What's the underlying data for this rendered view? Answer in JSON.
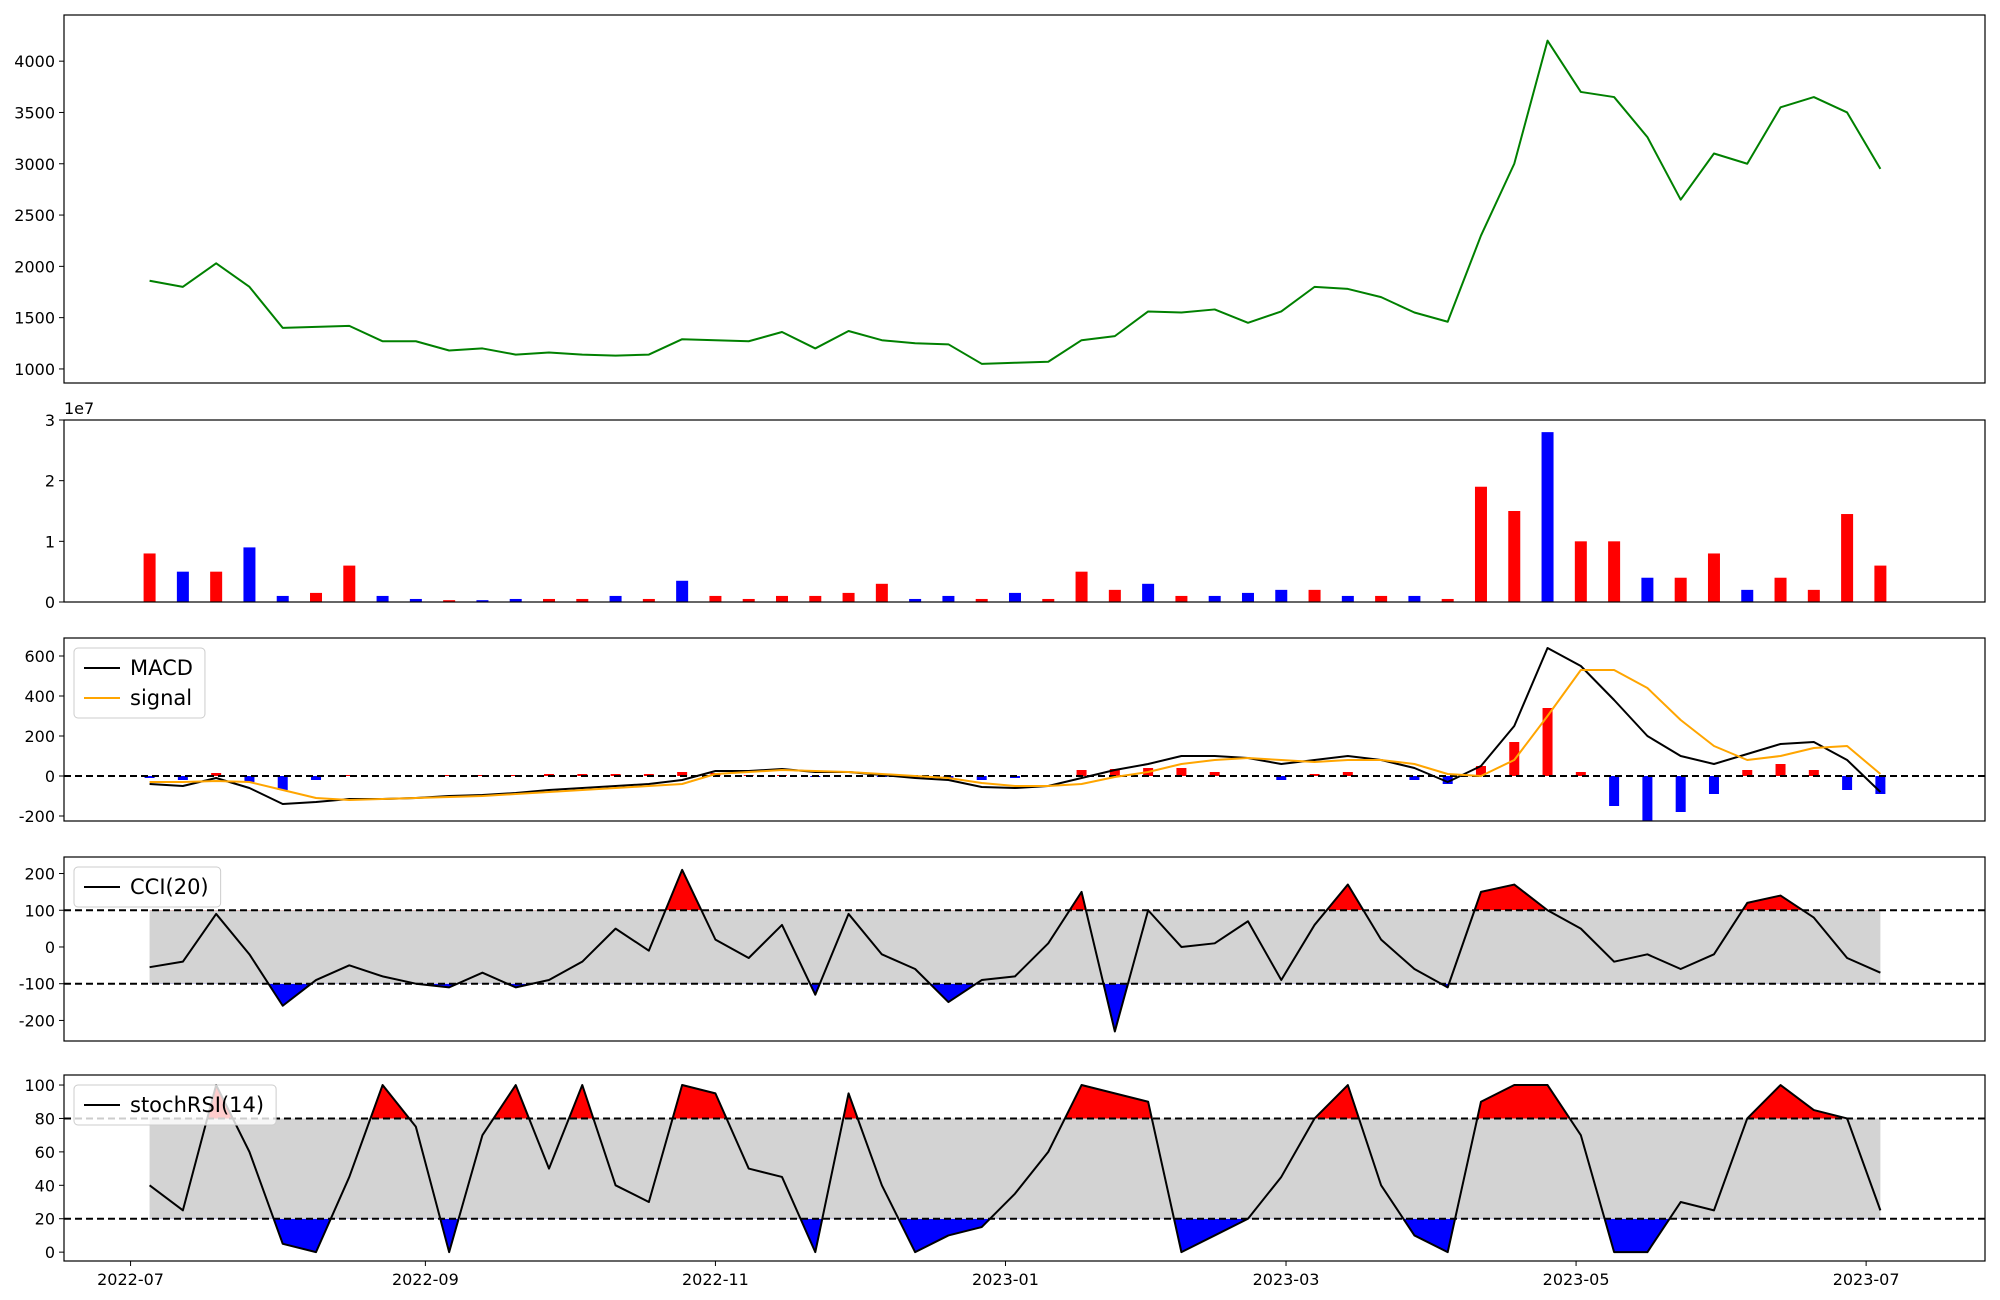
{
  "x": [
    "2022-07-05",
    "2022-07-12",
    "2022-07-19",
    "2022-07-26",
    "2022-08-02",
    "2022-08-09",
    "2022-08-16",
    "2022-08-23",
    "2022-08-30",
    "2022-09-06",
    "2022-09-13",
    "2022-09-20",
    "2022-09-27",
    "2022-10-04",
    "2022-10-11",
    "2022-10-18",
    "2022-10-25",
    "2022-11-01",
    "2022-11-08",
    "2022-11-15",
    "2022-11-22",
    "2022-11-29",
    "2022-12-06",
    "2022-12-13",
    "2022-12-20",
    "2022-12-27",
    "2023-01-03",
    "2023-01-10",
    "2023-01-17",
    "2023-01-24",
    "2023-01-31",
    "2023-02-07",
    "2023-02-14",
    "2023-02-21",
    "2023-02-28",
    "2023-03-07",
    "2023-03-14",
    "2023-03-21",
    "2023-03-28",
    "2023-04-04",
    "2023-04-11",
    "2023-04-18",
    "2023-04-25",
    "2023-05-02",
    "2023-05-09",
    "2023-05-16",
    "2023-05-23",
    "2023-05-30",
    "2023-06-06",
    "2023-06-13",
    "2023-06-20",
    "2023-06-27",
    "2023-07-04"
  ],
  "xlim": [
    "2022-06-17",
    "2023-07-26"
  ],
  "xticks": [
    "2022-07",
    "2022-09",
    "2022-11",
    "2023-01",
    "2023-03",
    "2023-05",
    "2023-07"
  ],
  "chart_data": [
    {
      "type": "line",
      "ylim": [
        863,
        4450
      ],
      "yticks": [
        1000,
        1500,
        2000,
        2500,
        3000,
        3500,
        4000
      ],
      "series": [
        {
          "color": "green",
          "values": [
            1860,
            1800,
            2030,
            1800,
            1400,
            1410,
            1420,
            1270,
            1270,
            1180,
            1200,
            1140,
            1160,
            1140,
            1130,
            1140,
            1290,
            1280,
            1270,
            1360,
            1200,
            1370,
            1280,
            1250,
            1240,
            1050,
            1060,
            1070,
            1280,
            1320,
            1560,
            1550,
            1580,
            1450,
            1560,
            1800,
            1780,
            1700,
            1550,
            1460,
            2300,
            3000,
            4200,
            3700,
            3650,
            3260,
            2650,
            3100,
            3000,
            3550,
            3650,
            3500,
            2950
          ]
        }
      ]
    },
    {
      "type": "bar",
      "ylim": [
        0,
        3
      ],
      "yticks": [
        0,
        1,
        2,
        3
      ],
      "offset_text": "1e7",
      "series": [
        {
          "values": [
            0.8,
            0.5,
            0.5,
            0.9,
            0.1,
            0.15,
            0.6,
            0.1,
            0.05,
            0.03,
            0.03,
            0.05,
            0.05,
            0.05,
            0.1,
            0.05,
            0.35,
            0.1,
            0.05,
            0.1,
            0.1,
            0.15,
            0.3,
            0.05,
            0.1,
            0.05,
            0.15,
            0.05,
            0.5,
            0.2,
            0.3,
            0.1,
            0.1,
            0.15,
            0.2,
            0.2,
            0.1,
            0.1,
            0.1,
            0.05,
            1.9,
            1.5,
            2.8,
            1.0,
            1.0,
            0.4,
            0.4,
            0.8,
            0.2,
            0.4,
            0.2,
            1.45,
            0.6
          ],
          "colors": [
            "red",
            "blue",
            "red",
            "blue",
            "blue",
            "red",
            "red",
            "blue",
            "blue",
            "red",
            "blue",
            "blue",
            "red",
            "red",
            "blue",
            "red",
            "blue",
            "red",
            "red",
            "red",
            "red",
            "red",
            "red",
            "blue",
            "blue",
            "red",
            "blue",
            "red",
            "red",
            "red",
            "blue",
            "red",
            "blue",
            "blue",
            "blue",
            "red",
            "blue",
            "red",
            "blue",
            "red",
            "red",
            "red",
            "blue",
            "red",
            "red",
            "blue",
            "red",
            "red",
            "blue",
            "red",
            "red",
            "red",
            "red"
          ]
        }
      ]
    },
    {
      "type": "macd",
      "ylim": [
        -225,
        690
      ],
      "yticks": [
        -200,
        0,
        200,
        400,
        600
      ],
      "hlines": [
        0
      ],
      "legend": "upper left",
      "series": [
        {
          "name": "MACD",
          "color": "black",
          "values": [
            -40,
            -50,
            -10,
            -60,
            -140,
            -130,
            -115,
            -115,
            -110,
            -100,
            -95,
            -85,
            -70,
            -60,
            -50,
            -40,
            -20,
            25,
            25,
            35,
            20,
            20,
            5,
            -10,
            -20,
            -55,
            -60,
            -50,
            -10,
            30,
            60,
            100,
            100,
            90,
            60,
            80,
            100,
            80,
            40,
            -30,
            50,
            250,
            640,
            550,
            380,
            200,
            100,
            60,
            110,
            160,
            170,
            80,
            -80
          ]
        },
        {
          "name": "signal",
          "color": "orange",
          "values": [
            -30,
            -30,
            -25,
            -30,
            -70,
            -110,
            -120,
            -115,
            -110,
            -105,
            -100,
            -90,
            -80,
            -70,
            -60,
            -50,
            -40,
            10,
            20,
            30,
            25,
            20,
            10,
            0,
            -10,
            -35,
            -50,
            -50,
            -40,
            -5,
            20,
            60,
            80,
            90,
            80,
            70,
            80,
            80,
            60,
            10,
            0,
            80,
            300,
            530,
            530,
            440,
            280,
            150,
            80,
            100,
            140,
            150,
            10
          ]
        }
      ],
      "histogram": {
        "up_color": "red",
        "down_color": "blue",
        "values": [
          -10,
          -20,
          15,
          -30,
          -70,
          -20,
          5,
          0,
          0,
          5,
          5,
          5,
          10,
          10,
          10,
          10,
          20,
          15,
          5,
          5,
          -5,
          0,
          -5,
          -10,
          -10,
          -20,
          -10,
          0,
          30,
          35,
          40,
          40,
          20,
          0,
          -20,
          10,
          20,
          0,
          -20,
          -40,
          50,
          170,
          340,
          20,
          -150,
          -240,
          -180,
          -90,
          30,
          60,
          30,
          -70,
          -90
        ]
      }
    },
    {
      "type": "oscillator",
      "ylim": [
        -256,
        245
      ],
      "yticks": [
        -200,
        -100,
        0,
        100,
        200
      ],
      "hlines": [
        100,
        -100
      ],
      "legend": "upper left",
      "band_color": "lightgray",
      "above_color": "red",
      "below_color": "blue",
      "series": [
        {
          "name": "CCI(20)",
          "color": "black",
          "values": [
            -55,
            -40,
            90,
            -20,
            -160,
            -90,
            -50,
            -80,
            -100,
            -110,
            -70,
            -110,
            -90,
            -40,
            50,
            -10,
            210,
            20,
            -30,
            60,
            -130,
            90,
            -20,
            -60,
            -150,
            -90,
            -80,
            10,
            150,
            -230,
            100,
            0,
            10,
            70,
            -90,
            60,
            170,
            20,
            -60,
            -110,
            150,
            170,
            100,
            50,
            -40,
            -20,
            -60,
            -20,
            120,
            140,
            80,
            -30,
            -70
          ]
        }
      ]
    },
    {
      "type": "oscillator",
      "ylim": [
        -5.3,
        106
      ],
      "yticks": [
        0,
        20,
        40,
        60,
        80,
        100
      ],
      "hlines": [
        80,
        20
      ],
      "legend": "upper left",
      "band_color": "lightgray",
      "above_color": "red",
      "below_color": "blue",
      "series": [
        {
          "name": "stochRSI(14)",
          "color": "black",
          "values": [
            40,
            25,
            100,
            60,
            5,
            0,
            45,
            100,
            75,
            0,
            70,
            100,
            50,
            100,
            40,
            30,
            100,
            95,
            50,
            45,
            0,
            95,
            40,
            0,
            10,
            15,
            35,
            60,
            100,
            95,
            90,
            0,
            10,
            20,
            45,
            80,
            100,
            40,
            10,
            0,
            90,
            100,
            100,
            70,
            0,
            0,
            30,
            25,
            80,
            100,
            85,
            80,
            25
          ]
        }
      ]
    }
  ]
}
